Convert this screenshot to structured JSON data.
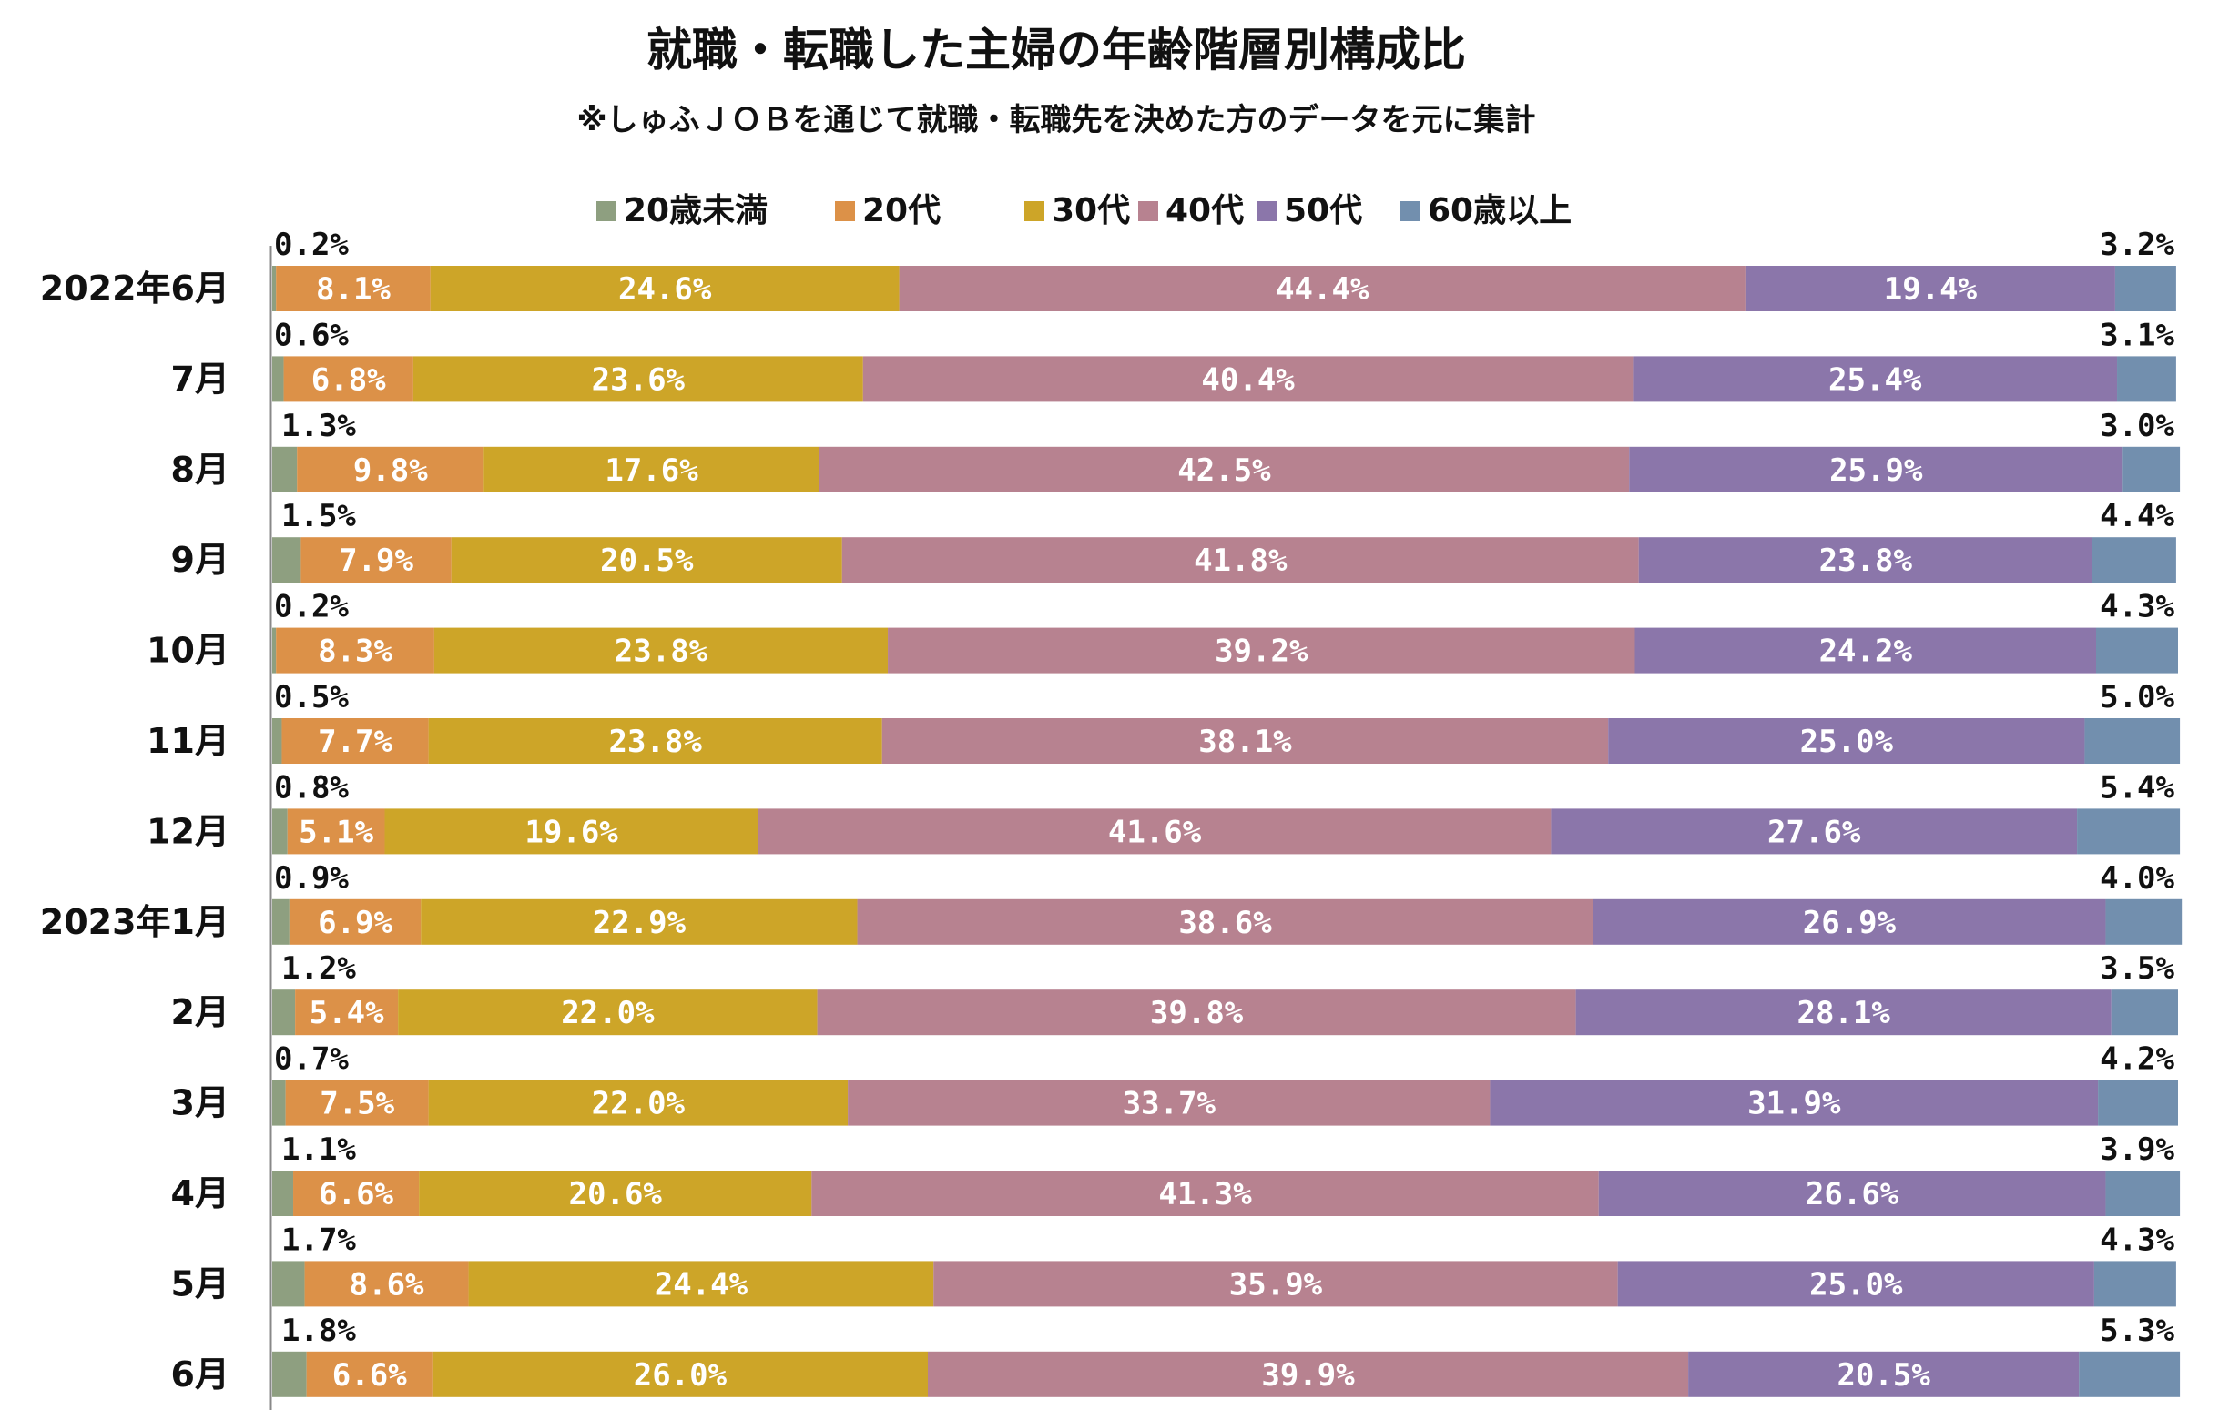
{
  "colors": {
    "20歳未満": "#8e9f80",
    "20代": "#dc9148",
    "30代": "#cda528",
    "40代": "#b78290",
    "50代": "#8b76aa",
    "60歳以上": "#728fae"
  },
  "chart_data": {
    "type": "bar",
    "orientation": "horizontal",
    "stacked": "percent",
    "title": "就職・転職した主婦の年齢階層別構成比",
    "subtitle": "※しゅふＪＯＢを通じて就職・転職先を決めた方のデータを元に集計",
    "legend_position": "top",
    "categories": [
      "2022年6月",
      "7月",
      "8月",
      "9月",
      "10月",
      "11月",
      "12月",
      "2023年1月",
      "2月",
      "3月",
      "4月",
      "5月",
      "6月"
    ],
    "series": [
      {
        "name": "20歳未満",
        "values": [
          0.2,
          0.6,
          1.3,
          1.5,
          0.2,
          0.5,
          0.8,
          0.9,
          1.2,
          0.7,
          1.1,
          1.7,
          1.8
        ],
        "labels": [
          "0.2%",
          "0.6%",
          "1.3%",
          "1.5%",
          "0.2%",
          "0.5%",
          "0.8%",
          "0.9%",
          "1.2%",
          "0.7%",
          "1.1%",
          "1.7%",
          "1.8%"
        ]
      },
      {
        "name": "20代",
        "values": [
          8.1,
          6.8,
          9.8,
          7.9,
          8.3,
          7.7,
          5.1,
          6.9,
          5.4,
          7.5,
          6.6,
          8.6,
          6.6
        ],
        "labels": [
          "8.1%",
          "6.8%",
          "9.8%",
          "7.9%",
          "8.3%",
          "7.7%",
          "5.1%",
          "6.9%",
          "5.4%",
          "7.5%",
          "6.6%",
          "8.6%",
          "6.6%"
        ]
      },
      {
        "name": "30代",
        "values": [
          24.6,
          23.6,
          17.6,
          20.5,
          23.8,
          23.8,
          19.6,
          22.9,
          22.0,
          22.0,
          20.6,
          24.4,
          26.0
        ],
        "labels": [
          "24.6%",
          "23.6%",
          "17.6%",
          "20.5%",
          "23.8%",
          "23.8%",
          "19.6%",
          "22.9%",
          "22.0%",
          "22.0%",
          "20.6%",
          "24.4%",
          "26.0%"
        ]
      },
      {
        "name": "40代",
        "values": [
          44.4,
          40.4,
          42.5,
          41.8,
          39.2,
          38.1,
          41.6,
          38.6,
          39.8,
          33.7,
          41.3,
          35.9,
          39.9
        ],
        "labels": [
          "44.4%",
          "40.4%",
          "42.5%",
          "41.8%",
          "39.2%",
          "38.1%",
          "41.6%",
          "38.6%",
          "39.8%",
          "33.7%",
          "41.3%",
          "35.9%",
          "39.9%"
        ]
      },
      {
        "name": "50代",
        "values": [
          19.4,
          25.4,
          25.9,
          23.8,
          24.2,
          25.0,
          27.6,
          26.9,
          28.1,
          31.9,
          26.6,
          25.0,
          20.5
        ],
        "labels": [
          "19.4%",
          "25.4%",
          "25.9%",
          "23.8%",
          "24.2%",
          "25.0%",
          "27.6%",
          "26.9%",
          "28.1%",
          "31.9%",
          "26.6%",
          "25.0%",
          "20.5%"
        ]
      },
      {
        "name": "60歳以上",
        "values": [
          3.2,
          3.1,
          3.0,
          4.4,
          4.3,
          5.0,
          5.4,
          4.0,
          3.5,
          4.2,
          3.9,
          4.3,
          5.3
        ],
        "labels": [
          "3.2%",
          "3.1%",
          "3.0%",
          "4.4%",
          "4.3%",
          "5.0%",
          "5.4%",
          "4.0%",
          "3.5%",
          "4.2%",
          "3.9%",
          "4.3%",
          "5.3%"
        ]
      }
    ]
  }
}
